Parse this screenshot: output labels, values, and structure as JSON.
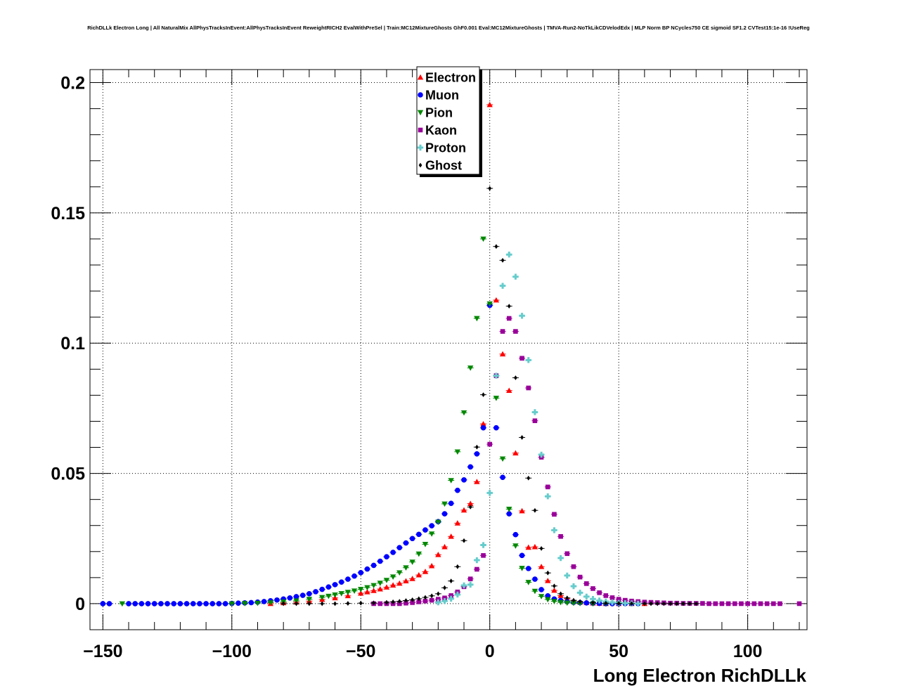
{
  "title": "RichDLLk Electron Long | All NaturalMix AllPhysTracksInEvent:AllPhysTracksInEvent ReweightRICH2 EvalWithPreSel | Train:MC12MixtureGhosts GhF0.001 Eval:MC12MixtureGhosts | TMVA-Run2-NoTkLikCDVelodEdx | MLP Norm BP NCycles750 CE sigmoid SF1.2 CVTest15:1e-16 !UseReg",
  "chart_data": {
    "type": "scatter",
    "xlabel": "Long Electron RichDLLk",
    "ylabel": "",
    "xlim": [
      -155,
      123
    ],
    "ylim": [
      -0.01,
      0.205
    ],
    "x_ticks": [
      -150,
      -100,
      -50,
      0,
      50,
      100
    ],
    "x_tick_labels": [
      "−150",
      "−100",
      "−50",
      "0",
      "50",
      "100"
    ],
    "y_ticks": [
      0,
      0.05,
      0.1,
      0.15,
      0.2
    ],
    "y_tick_labels": [
      "0",
      "0.05",
      "0.1",
      "0.15",
      "0.2"
    ],
    "grid": true,
    "legend_position": "top-center",
    "series": [
      {
        "name": "Electron",
        "color": "#ff0000",
        "marker": "triangle-up",
        "x": [
          -85,
          -80,
          -75,
          -70,
          -65,
          -60,
          -55,
          -50,
          -47.5,
          -45,
          -42.5,
          -40,
          -37.5,
          -35,
          -32.5,
          -30,
          -27.5,
          -25,
          -22.5,
          -20,
          -17.5,
          -15,
          -12.5,
          -10,
          -7.5,
          -5,
          -2.5,
          0,
          2.5,
          5,
          7.5,
          10,
          12.5,
          15,
          17.5,
          20,
          22.5,
          25,
          27.5,
          30,
          32.5,
          35,
          37.5,
          40,
          42.5,
          45,
          50,
          55,
          60
        ],
        "y": [
          0,
          0.0003,
          0.0006,
          0.001,
          0.0016,
          0.0022,
          0.003,
          0.004,
          0.0045,
          0.005,
          0.0056,
          0.0063,
          0.0071,
          0.0078,
          0.0087,
          0.0096,
          0.011,
          0.0123,
          0.0145,
          0.0188,
          0.0218,
          0.0258,
          0.0309,
          0.0359,
          0.0384,
          0.0468,
          0.069,
          0.1915,
          0.1165,
          0.0958,
          0.0818,
          0.0578,
          0.0356,
          0.0216,
          0.0218,
          0.0142,
          0.0088,
          0.0051,
          0.0031,
          0.0019,
          0.0011,
          0.0006,
          0.0004,
          0.0002,
          0.0001,
          0,
          0,
          0,
          0
        ]
      },
      {
        "name": "Muon",
        "color": "#0000ff",
        "marker": "circle",
        "x": [
          -150,
          -147.5,
          -140,
          -137.5,
          -135,
          -132.5,
          -130,
          -127.5,
          -125,
          -122.5,
          -120,
          -117.5,
          -115,
          -112.5,
          -110,
          -107.5,
          -105,
          -102.5,
          -100,
          -97.5,
          -95,
          -92.5,
          -90,
          -87.5,
          -85,
          -82.5,
          -80,
          -77.5,
          -75,
          -72.5,
          -70,
          -67.5,
          -65,
          -62.5,
          -60,
          -57.5,
          -55,
          -52.5,
          -50,
          -47.5,
          -45,
          -42.5,
          -40,
          -37.5,
          -35,
          -32.5,
          -30,
          -27.5,
          -25,
          -22.5,
          -20,
          -17.5,
          -15,
          -12.5,
          -10,
          -7.5,
          -5,
          -2.5,
          0,
          2.5,
          5,
          7.5,
          10,
          12.5,
          15,
          17.5,
          20,
          22.5,
          25,
          27.5,
          30,
          32.5,
          35,
          37.5,
          40,
          42.5,
          45,
          47.5,
          50,
          52.5,
          55,
          57.5
        ],
        "y": [
          0,
          0,
          0,
          0,
          0,
          0,
          0,
          0,
          0,
          0,
          0,
          0,
          0,
          0,
          0,
          0,
          0,
          0,
          0.0001,
          0.0002,
          0.0003,
          0.0004,
          0.0006,
          0.0008,
          0.0011,
          0.0014,
          0.0018,
          0.0022,
          0.0027,
          0.0032,
          0.0038,
          0.0046,
          0.0055,
          0.0064,
          0.0073,
          0.0083,
          0.0094,
          0.0106,
          0.0119,
          0.0133,
          0.0147,
          0.0163,
          0.018,
          0.0197,
          0.0215,
          0.0233,
          0.025,
          0.0266,
          0.0283,
          0.0299,
          0.0315,
          0.0345,
          0.0385,
          0.0435,
          0.0475,
          0.0525,
          0.0575,
          0.0675,
          0.1145,
          0.0675,
          0.0485,
          0.0345,
          0.0265,
          0.0185,
          0.0135,
          0.0094,
          0.0054,
          0.003,
          0.0018,
          0.0012,
          0.0008,
          0.0005,
          0.0004,
          0.0003,
          0.0002,
          0.0001,
          0,
          0,
          0,
          0,
          0,
          0
        ]
      },
      {
        "name": "Pion",
        "color": "#008800",
        "marker": "triangle-down",
        "x": [
          -142.5,
          -100,
          -95,
          -90,
          -85,
          -80,
          -75,
          -70,
          -65,
          -62.5,
          -60,
          -57.5,
          -55,
          -52.5,
          -50,
          -47.5,
          -45,
          -42.5,
          -40,
          -37.5,
          -35,
          -32.5,
          -30,
          -27.5,
          -25,
          -22.5,
          -20,
          -17.5,
          -15,
          -12.5,
          -10,
          -7.5,
          -5,
          -2.5,
          0,
          2.5,
          5,
          7.5,
          10,
          12.5,
          15,
          17.5,
          20,
          22.5,
          25,
          27.5,
          30,
          32.5,
          35,
          40,
          45,
          50,
          55
        ],
        "y": [
          0,
          0,
          0.0001,
          0.0002,
          0.0004,
          0.0007,
          0.0011,
          0.0017,
          0.0024,
          0.0029,
          0.0034,
          0.0039,
          0.0044,
          0.0049,
          0.0055,
          0.0062,
          0.007,
          0.0079,
          0.009,
          0.0103,
          0.0119,
          0.0138,
          0.016,
          0.0191,
          0.0228,
          0.0268,
          0.0313,
          0.0383,
          0.0473,
          0.0583,
          0.0733,
          0.0905,
          0.1095,
          0.14,
          0.1151,
          0.0789,
          0.0556,
          0.0363,
          0.0222,
          0.0136,
          0.0082,
          0.0048,
          0.0028,
          0.0016,
          0.0009,
          0.0005,
          0.0003,
          0.0002,
          0.0001,
          0,
          0,
          0,
          0
        ]
      },
      {
        "name": "Kaon",
        "color": "#990099",
        "marker": "square",
        "x": [
          -45,
          -42.5,
          -40,
          -37.5,
          -35,
          -32.5,
          -30,
          -27.5,
          -25,
          -22.5,
          -20,
          -17.5,
          -15,
          -12.5,
          -10,
          -7.5,
          -5,
          -2.5,
          0,
          2.5,
          5,
          7.5,
          10,
          12.5,
          15,
          17.5,
          20,
          22.5,
          25,
          27.5,
          30,
          32.5,
          35,
          37.5,
          40,
          42.5,
          45,
          47.5,
          50,
          52.5,
          55,
          57.5,
          60,
          62.5,
          65,
          67.5,
          70,
          72.5,
          75,
          77.5,
          80,
          82.5,
          85,
          87.5,
          90,
          92.5,
          95,
          97.5,
          100,
          102.5,
          105,
          107.5,
          110,
          112.5,
          120
        ],
        "y": [
          0,
          0,
          0,
          0,
          0,
          0.0002,
          0.0004,
          0.0007,
          0.001,
          0.0013,
          0.0017,
          0.0022,
          0.0031,
          0.0045,
          0.0065,
          0.0095,
          0.0132,
          0.0185,
          0.0612,
          0.0875,
          0.1045,
          0.1095,
          0.1045,
          0.0942,
          0.0828,
          0.0702,
          0.0562,
          0.0448,
          0.0343,
          0.0258,
          0.0192,
          0.0142,
          0.0102,
          0.0077,
          0.0058,
          0.0042,
          0.0031,
          0.0023,
          0.0017,
          0.0013,
          0.001,
          0.0008,
          0.0006,
          0.0005,
          0.0004,
          0.0003,
          0.0002,
          0.0002,
          0.0001,
          0.0001,
          0.0001,
          0.0001,
          0,
          0,
          0,
          0,
          0,
          0,
          0,
          0,
          0,
          0,
          0,
          0,
          0
        ]
      },
      {
        "name": "Proton",
        "color": "#66cccc",
        "marker": "cross",
        "x": [
          -20,
          -17.5,
          -15,
          -12.5,
          -10,
          -7.5,
          -5,
          -2.5,
          0,
          2.5,
          5,
          7.5,
          10,
          12.5,
          15,
          17.5,
          20,
          22.5,
          25,
          27.5,
          30,
          32.5,
          35,
          37.5,
          40,
          42.5,
          45,
          47.5,
          50,
          52.5,
          55,
          57.5
        ],
        "y": [
          0.0005,
          0.001,
          0.0019,
          0.0035,
          0.007,
          0.0073,
          0.0167,
          0.0225,
          0.0425,
          0.0875,
          0.122,
          0.134,
          0.1255,
          0.1105,
          0.0935,
          0.0735,
          0.0572,
          0.0412,
          0.0282,
          0.0175,
          0.0108,
          0.0067,
          0.0042,
          0.0027,
          0.0018,
          0.0012,
          0.0008,
          0.0005,
          0.0003,
          0.0002,
          0.0001,
          0
        ]
      },
      {
        "name": "Ghost",
        "color": "#000000",
        "marker": "diamond",
        "x": [
          -80,
          -75,
          -70,
          -65,
          -60,
          -55,
          -50,
          -45,
          -40,
          -37.5,
          -35,
          -32.5,
          -30,
          -27.5,
          -25,
          -22.5,
          -20,
          -17.5,
          -15,
          -12.5,
          -10,
          -7.5,
          -5,
          -2.5,
          0,
          2.5,
          5,
          7.5,
          10,
          12.5,
          15,
          17.5,
          20,
          22.5,
          25,
          27.5,
          30,
          32.5,
          35,
          40,
          45,
          50,
          55,
          60,
          62.5,
          65,
          67.5,
          70,
          72.5,
          75,
          77.5,
          80
        ],
        "y": [
          0,
          0,
          0,
          0,
          0,
          0.0001,
          0.0002,
          0.0003,
          0.0005,
          0.0007,
          0.0009,
          0.0012,
          0.0015,
          0.0019,
          0.0024,
          0.003,
          0.0038,
          0.0061,
          0.0087,
          0.0142,
          0.0242,
          0.0371,
          0.0601,
          0.0802,
          0.1594,
          0.1371,
          0.1318,
          0.1142,
          0.0867,
          0.0638,
          0.0482,
          0.0358,
          0.0212,
          0.0118,
          0.0068,
          0.0038,
          0.0022,
          0.0013,
          0.0008,
          0.0004,
          0.0002,
          0.0001,
          0,
          0,
          0,
          0,
          0,
          0,
          0,
          0,
          0,
          0
        ]
      }
    ]
  }
}
